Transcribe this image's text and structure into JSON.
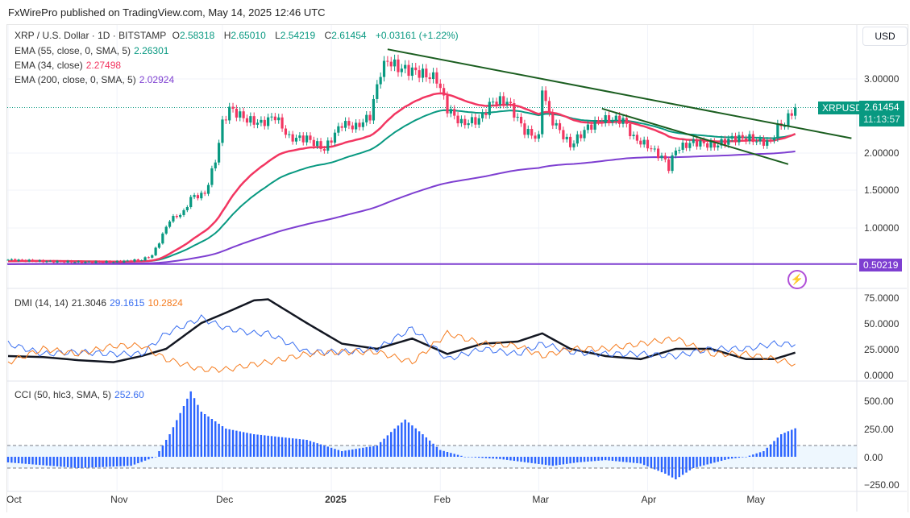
{
  "caption": "FxWirePro published on TradingView.com, May 14, 2025 12:46 UTC",
  "header": {
    "symbol": "XRP / U.S. Dollar · 1D · BITSTAMP",
    "o_label": "O",
    "o": "2.58318",
    "h_label": "H",
    "h": "2.65010",
    "l_label": "L",
    "l": "2.54219",
    "c_label": "C",
    "c": "2.61454",
    "change": "+0.03161 (+1.22%)"
  },
  "indicators": {
    "ema55": {
      "label": "EMA (55, close, 0, SMA, 5)",
      "value": "2.26301",
      "color": "#089981"
    },
    "ema34": {
      "label": "EMA (34, close)",
      "value": "2.27498",
      "color": "#f23661"
    },
    "ema200": {
      "label": "EMA (200, close, 0, SMA, 5)",
      "value": "2.02924",
      "color": "#7e3fd1"
    },
    "dmi": {
      "label": "DMI (14, 14)",
      "adx": "21.3046",
      "plus": "29.1615",
      "minus": "10.2824"
    },
    "cci": {
      "label": "CCI (50, hlc3, SMA, 5)",
      "value": "252.60"
    }
  },
  "currency": "USD",
  "price_tag": {
    "symbol": "XRPUSD",
    "price": "2.61454",
    "countdown": "11:13:57"
  },
  "level_tag": "0.50219",
  "price_axis": [
    "3.00000",
    "2.00000",
    "1.50000",
    "1.00000"
  ],
  "dmi_axis": [
    "75.0000",
    "50.0000",
    "25.0000",
    "0.0000"
  ],
  "cci_axis": [
    "500.00",
    "250.00",
    "0.00",
    "−250.00"
  ],
  "x_axis": [
    "Oct",
    "Nov",
    "Dec",
    "2025",
    "Feb",
    "Mar",
    "Apr",
    "May"
  ],
  "chart_data": {
    "type": "candlestick",
    "x_unit": "days since Oct 1 2024",
    "x_ticks": [
      0,
      31,
      61,
      92,
      123,
      151,
      182,
      212
    ],
    "price_ylim": [
      0.4,
      3.5
    ],
    "closes": [
      [
        0,
        0.56
      ],
      [
        10,
        0.54
      ],
      [
        20,
        0.53
      ],
      [
        30,
        0.53
      ],
      [
        38,
        0.56
      ],
      [
        41,
        0.62
      ],
      [
        43,
        0.8
      ],
      [
        46,
        1.1
      ],
      [
        50,
        1.2
      ],
      [
        52,
        1.4
      ],
      [
        56,
        1.45
      ],
      [
        59,
        1.9
      ],
      [
        61,
        2.4
      ],
      [
        63,
        2.6
      ],
      [
        68,
        2.45
      ],
      [
        72,
        2.4
      ],
      [
        76,
        2.5
      ],
      [
        80,
        2.2
      ],
      [
        85,
        2.2
      ],
      [
        90,
        2.05
      ],
      [
        95,
        2.4
      ],
      [
        99,
        2.35
      ],
      [
        103,
        2.5
      ],
      [
        106,
        3.1
      ],
      [
        108,
        3.25
      ],
      [
        111,
        3.15
      ],
      [
        116,
        3.1
      ],
      [
        122,
        3.0
      ],
      [
        125,
        2.6
      ],
      [
        129,
        2.4
      ],
      [
        134,
        2.45
      ],
      [
        138,
        2.7
      ],
      [
        142,
        2.7
      ],
      [
        147,
        2.3
      ],
      [
        151,
        2.2
      ],
      [
        152,
        2.9
      ],
      [
        154,
        2.5
      ],
      [
        157,
        2.3
      ],
      [
        160,
        2.1
      ],
      [
        165,
        2.35
      ],
      [
        169,
        2.45
      ],
      [
        175,
        2.45
      ],
      [
        178,
        2.2
      ],
      [
        182,
        2.1
      ],
      [
        187,
        1.9
      ],
      [
        188,
        1.8
      ],
      [
        190,
        2.05
      ],
      [
        195,
        2.15
      ],
      [
        201,
        2.1
      ],
      [
        206,
        2.2
      ],
      [
        211,
        2.2
      ],
      [
        214,
        2.15
      ],
      [
        217,
        2.15
      ],
      [
        219,
        2.35
      ],
      [
        221,
        2.4
      ],
      [
        223,
        2.55
      ],
      [
        224,
        2.61454
      ]
    ],
    "horizontal_level": 0.50219,
    "trendlines": [
      [
        [
          108,
          3.4
        ],
        [
          240,
          2.2
        ]
      ],
      [
        [
          169,
          2.6
        ],
        [
          222,
          1.85
        ]
      ]
    ],
    "dmi": {
      "ylim": [
        0,
        80
      ],
      "points": [
        [
          0,
          18,
          30,
          12
        ],
        [
          10,
          17,
          20,
          25
        ],
        [
          20,
          14,
          22,
          20
        ],
        [
          30,
          12,
          20,
          28
        ],
        [
          38,
          18,
          20,
          28
        ],
        [
          45,
          25,
          40,
          15
        ],
        [
          55,
          50,
          55,
          5
        ],
        [
          62,
          60,
          45,
          5
        ],
        [
          70,
          72,
          40,
          10
        ],
        [
          74,
          73,
          40,
          12
        ],
        [
          85,
          50,
          22,
          20
        ],
        [
          95,
          30,
          22,
          22
        ],
        [
          105,
          25,
          25,
          22
        ],
        [
          115,
          35,
          45,
          12
        ],
        [
          125,
          20,
          15,
          40
        ],
        [
          135,
          30,
          25,
          30
        ],
        [
          145,
          32,
          20,
          28
        ],
        [
          152,
          40,
          30,
          18
        ],
        [
          160,
          25,
          22,
          25
        ],
        [
          170,
          18,
          20,
          25
        ],
        [
          180,
          15,
          20,
          30
        ],
        [
          190,
          25,
          18,
          35
        ],
        [
          200,
          25,
          25,
          20
        ],
        [
          210,
          15,
          25,
          20
        ],
        [
          218,
          15,
          30,
          15
        ],
        [
          224,
          21.3,
          29.16,
          10.28
        ]
      ]
    },
    "cci": {
      "ylim": [
        -300,
        600
      ],
      "band": [
        -100,
        100
      ],
      "points": [
        [
          0,
          -50
        ],
        [
          20,
          -100
        ],
        [
          35,
          -80
        ],
        [
          42,
          0
        ],
        [
          46,
          200
        ],
        [
          50,
          450
        ],
        [
          52,
          580
        ],
        [
          55,
          400
        ],
        [
          62,
          250
        ],
        [
          70,
          200
        ],
        [
          85,
          150
        ],
        [
          95,
          50
        ],
        [
          105,
          100
        ],
        [
          110,
          250
        ],
        [
          113,
          330
        ],
        [
          118,
          200
        ],
        [
          123,
          60
        ],
        [
          130,
          0
        ],
        [
          140,
          -20
        ],
        [
          150,
          -60
        ],
        [
          155,
          -80
        ],
        [
          162,
          -50
        ],
        [
          170,
          -30
        ],
        [
          180,
          -60
        ],
        [
          187,
          -150
        ],
        [
          190,
          -200
        ],
        [
          195,
          -100
        ],
        [
          205,
          -20
        ],
        [
          210,
          0
        ],
        [
          215,
          50
        ],
        [
          220,
          200
        ],
        [
          224,
          252.6
        ]
      ]
    }
  }
}
